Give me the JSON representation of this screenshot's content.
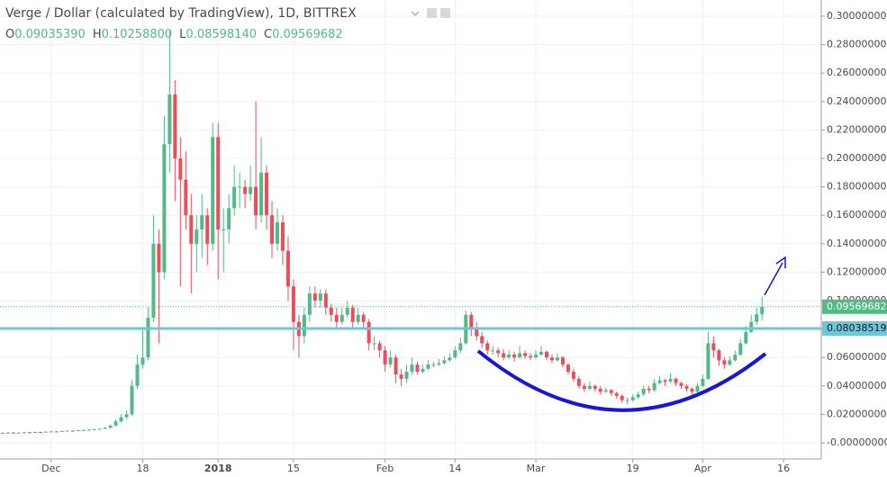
{
  "chart_data": {
    "type": "candlestick",
    "title": "Verge / Dollar (calculated by TradingView), 1D, BITTREX",
    "ohlc_legend": [
      {
        "label": "O",
        "value": "0.09035390"
      },
      {
        "label": "H",
        "value": "0.10258800"
      },
      {
        "label": "L",
        "value": "0.08598140"
      },
      {
        "label": "C",
        "value": "0.09569682"
      }
    ],
    "up_color": "#53b987",
    "down_color": "#eb4d5c",
    "grid": true,
    "xlim": [
      -0.5,
      152
    ],
    "ylim": [
      -0.0114,
      0.3114
    ],
    "xticks": [
      {
        "value": 9,
        "label": "Dec"
      },
      {
        "value": 26,
        "label": "18"
      },
      {
        "value": 40,
        "label": "2018"
      },
      {
        "value": 54,
        "label": "15"
      },
      {
        "value": 71,
        "label": "Feb"
      },
      {
        "value": 84,
        "label": "14"
      },
      {
        "value": 99,
        "label": "Mar"
      },
      {
        "value": 117,
        "label": "19"
      },
      {
        "value": 130,
        "label": "Apr"
      },
      {
        "value": 145,
        "label": "16"
      }
    ],
    "yticks": [
      {
        "value": 0,
        "label": "-0.00000000"
      },
      {
        "value": 0.02,
        "label": "0.02000000"
      },
      {
        "value": 0.04,
        "label": "0.04000000"
      },
      {
        "value": 0.06,
        "label": "0.06000000"
      },
      {
        "value": 0.08,
        "label": "0.08000000"
      },
      {
        "value": 0.1,
        "label": "0.10000000"
      },
      {
        "value": 0.12,
        "label": "0.12000000"
      },
      {
        "value": 0.14,
        "label": "0.14000000"
      },
      {
        "value": 0.16,
        "label": "0.16000000"
      },
      {
        "value": 0.18,
        "label": "0.18000000"
      },
      {
        "value": 0.2,
        "label": "0.20000000"
      },
      {
        "value": 0.22,
        "label": "0.22000000"
      },
      {
        "value": 0.24,
        "label": "0.24000000"
      },
      {
        "value": 0.26,
        "label": "0.26000000"
      },
      {
        "value": 0.28,
        "label": "0.28000000"
      },
      {
        "value": 0.3,
        "label": "0.30000000"
      }
    ],
    "horizontal_line": {
      "value": 0.08038519,
      "label": "0.08038519",
      "color": "#6fc6d8"
    },
    "last_price": {
      "value": 0.09569682,
      "label": "0.09569682"
    },
    "candles": [
      [
        0.0068,
        0.0073,
        0.0066,
        0.007
      ],
      [
        0.007,
        0.0075,
        0.0068,
        0.0072
      ],
      [
        0.0072,
        0.0074,
        0.0066,
        0.0068
      ],
      [
        0.0068,
        0.0073,
        0.0066,
        0.0071
      ],
      [
        0.0071,
        0.0077,
        0.0069,
        0.0074
      ],
      [
        0.0074,
        0.0076,
        0.007,
        0.0072
      ],
      [
        0.0072,
        0.0079,
        0.0071,
        0.0076
      ],
      [
        0.0076,
        0.0078,
        0.0073,
        0.0075
      ],
      [
        0.0075,
        0.0081,
        0.0074,
        0.0078
      ],
      [
        0.0078,
        0.0083,
        0.0076,
        0.008
      ],
      [
        0.008,
        0.0082,
        0.0077,
        0.0079
      ],
      [
        0.0079,
        0.0086,
        0.0078,
        0.0083
      ],
      [
        0.0083,
        0.0088,
        0.0081,
        0.0085
      ],
      [
        0.0085,
        0.0087,
        0.0082,
        0.0084
      ],
      [
        0.0084,
        0.0091,
        0.0083,
        0.0088
      ],
      [
        0.0088,
        0.0094,
        0.0086,
        0.009
      ],
      [
        0.009,
        0.0096,
        0.0088,
        0.0092
      ],
      [
        0.0092,
        0.0099,
        0.009,
        0.0095
      ],
      [
        0.0095,
        0.0102,
        0.0093,
        0.0098
      ],
      [
        0.0098,
        0.0112,
        0.0096,
        0.0105
      ],
      [
        0.0105,
        0.013,
        0.0102,
        0.012
      ],
      [
        0.012,
        0.0165,
        0.0115,
        0.015
      ],
      [
        0.015,
        0.02,
        0.0145,
        0.018
      ],
      [
        0.018,
        0.023,
        0.017,
        0.02
      ],
      [
        0.02,
        0.044,
        0.019,
        0.04
      ],
      [
        0.04,
        0.062,
        0.038,
        0.055
      ],
      [
        0.055,
        0.08,
        0.052,
        0.06
      ],
      [
        0.06,
        0.095,
        0.058,
        0.088
      ],
      [
        0.088,
        0.16,
        0.085,
        0.14
      ],
      [
        0.14,
        0.15,
        0.07,
        0.12
      ],
      [
        0.12,
        0.23,
        0.115,
        0.21
      ],
      [
        0.21,
        0.29,
        0.19,
        0.245
      ],
      [
        0.245,
        0.255,
        0.17,
        0.2
      ],
      [
        0.2,
        0.215,
        0.11,
        0.185
      ],
      [
        0.185,
        0.205,
        0.15,
        0.16
      ],
      [
        0.16,
        0.175,
        0.105,
        0.14
      ],
      [
        0.14,
        0.16,
        0.12,
        0.15
      ],
      [
        0.15,
        0.175,
        0.13,
        0.16
      ],
      [
        0.16,
        0.165,
        0.125,
        0.14
      ],
      [
        0.14,
        0.225,
        0.135,
        0.215
      ],
      [
        0.215,
        0.225,
        0.115,
        0.15
      ],
      [
        0.15,
        0.165,
        0.12,
        0.15
      ],
      [
        0.15,
        0.175,
        0.14,
        0.165
      ],
      [
        0.165,
        0.195,
        0.16,
        0.18
      ],
      [
        0.18,
        0.19,
        0.165,
        0.18
      ],
      [
        0.18,
        0.185,
        0.165,
        0.175
      ],
      [
        0.175,
        0.195,
        0.17,
        0.18
      ],
      [
        0.18,
        0.24,
        0.15,
        0.16
      ],
      [
        0.16,
        0.215,
        0.155,
        0.19
      ],
      [
        0.19,
        0.195,
        0.15,
        0.16
      ],
      [
        0.16,
        0.17,
        0.13,
        0.14
      ],
      [
        0.14,
        0.165,
        0.135,
        0.155
      ],
      [
        0.155,
        0.16,
        0.125,
        0.135
      ],
      [
        0.135,
        0.145,
        0.1,
        0.11
      ],
      [
        0.11,
        0.115,
        0.065,
        0.085
      ],
      [
        0.085,
        0.09,
        0.06,
        0.075
      ],
      [
        0.075,
        0.095,
        0.07,
        0.09
      ],
      [
        0.09,
        0.11,
        0.085,
        0.105
      ],
      [
        0.105,
        0.11,
        0.095,
        0.1
      ],
      [
        0.1,
        0.108,
        0.095,
        0.105
      ],
      [
        0.105,
        0.108,
        0.09,
        0.095
      ],
      [
        0.095,
        0.098,
        0.085,
        0.09
      ],
      [
        0.09,
        0.095,
        0.08,
        0.085
      ],
      [
        0.085,
        0.095,
        0.083,
        0.09
      ],
      [
        0.09,
        0.1,
        0.088,
        0.095
      ],
      [
        0.095,
        0.097,
        0.08,
        0.085
      ],
      [
        0.085,
        0.095,
        0.083,
        0.09
      ],
      [
        0.09,
        0.092,
        0.08,
        0.085
      ],
      [
        0.085,
        0.087,
        0.065,
        0.07
      ],
      [
        0.07,
        0.075,
        0.065,
        0.07
      ],
      [
        0.07,
        0.072,
        0.06,
        0.065
      ],
      [
        0.065,
        0.068,
        0.05,
        0.055
      ],
      [
        0.055,
        0.065,
        0.053,
        0.06
      ],
      [
        0.06,
        0.062,
        0.042,
        0.048
      ],
      [
        0.048,
        0.052,
        0.04,
        0.045
      ],
      [
        0.045,
        0.055,
        0.042,
        0.05
      ],
      [
        0.05,
        0.06,
        0.048,
        0.055
      ],
      [
        0.055,
        0.057,
        0.048,
        0.05
      ],
      [
        0.05,
        0.055,
        0.049,
        0.052
      ],
      [
        0.052,
        0.058,
        0.051,
        0.055
      ],
      [
        0.055,
        0.057,
        0.053,
        0.055
      ],
      [
        0.055,
        0.059,
        0.054,
        0.056
      ],
      [
        0.056,
        0.061,
        0.055,
        0.058
      ],
      [
        0.058,
        0.063,
        0.057,
        0.06
      ],
      [
        0.06,
        0.068,
        0.059,
        0.065
      ],
      [
        0.065,
        0.074,
        0.063,
        0.07
      ],
      [
        0.07,
        0.093,
        0.069,
        0.09
      ],
      [
        0.09,
        0.092,
        0.075,
        0.08
      ],
      [
        0.08,
        0.085,
        0.072,
        0.075
      ],
      [
        0.075,
        0.078,
        0.067,
        0.07
      ],
      [
        0.07,
        0.072,
        0.062,
        0.065
      ],
      [
        0.065,
        0.068,
        0.062,
        0.065
      ],
      [
        0.065,
        0.067,
        0.06,
        0.063
      ],
      [
        0.063,
        0.066,
        0.058,
        0.06
      ],
      [
        0.06,
        0.065,
        0.059,
        0.062
      ],
      [
        0.062,
        0.064,
        0.057,
        0.06
      ],
      [
        0.06,
        0.068,
        0.059,
        0.063
      ],
      [
        0.063,
        0.065,
        0.059,
        0.061
      ],
      [
        0.061,
        0.063,
        0.058,
        0.06
      ],
      [
        0.06,
        0.065,
        0.059,
        0.062
      ],
      [
        0.062,
        0.068,
        0.061,
        0.064
      ],
      [
        0.064,
        0.065,
        0.058,
        0.06
      ],
      [
        0.06,
        0.062,
        0.056,
        0.058
      ],
      [
        0.058,
        0.063,
        0.057,
        0.06
      ],
      [
        0.06,
        0.061,
        0.053,
        0.055
      ],
      [
        0.055,
        0.056,
        0.048,
        0.05
      ],
      [
        0.05,
        0.052,
        0.043,
        0.045
      ],
      [
        0.045,
        0.047,
        0.038,
        0.04
      ],
      [
        0.04,
        0.042,
        0.036,
        0.038
      ],
      [
        0.038,
        0.043,
        0.037,
        0.04
      ],
      [
        0.04,
        0.041,
        0.036,
        0.038
      ],
      [
        0.038,
        0.04,
        0.034,
        0.036
      ],
      [
        0.036,
        0.039,
        0.035,
        0.037
      ],
      [
        0.037,
        0.038,
        0.033,
        0.035
      ],
      [
        0.035,
        0.036,
        0.031,
        0.033
      ],
      [
        0.033,
        0.034,
        0.028,
        0.03
      ],
      [
        0.03,
        0.032,
        0.027,
        0.03
      ],
      [
        0.03,
        0.034,
        0.029,
        0.032
      ],
      [
        0.032,
        0.036,
        0.031,
        0.034
      ],
      [
        0.034,
        0.04,
        0.033,
        0.038
      ],
      [
        0.038,
        0.04,
        0.035,
        0.037
      ],
      [
        0.037,
        0.045,
        0.036,
        0.042
      ],
      [
        0.042,
        0.047,
        0.041,
        0.044
      ],
      [
        0.044,
        0.045,
        0.04,
        0.043
      ],
      [
        0.043,
        0.049,
        0.042,
        0.045
      ],
      [
        0.045,
        0.046,
        0.04,
        0.042
      ],
      [
        0.042,
        0.043,
        0.038,
        0.04
      ],
      [
        0.04,
        0.041,
        0.036,
        0.038
      ],
      [
        0.038,
        0.039,
        0.034,
        0.036
      ],
      [
        0.036,
        0.042,
        0.035,
        0.04
      ],
      [
        0.04,
        0.048,
        0.039,
        0.045
      ],
      [
        0.045,
        0.078,
        0.044,
        0.07
      ],
      [
        0.07,
        0.075,
        0.06,
        0.065
      ],
      [
        0.065,
        0.066,
        0.054,
        0.058
      ],
      [
        0.058,
        0.06,
        0.052,
        0.055
      ],
      [
        0.055,
        0.061,
        0.054,
        0.058
      ],
      [
        0.058,
        0.065,
        0.057,
        0.062
      ],
      [
        0.062,
        0.073,
        0.061,
        0.07
      ],
      [
        0.07,
        0.082,
        0.069,
        0.078
      ],
      [
        0.078,
        0.09,
        0.077,
        0.085
      ],
      [
        0.085,
        0.095,
        0.083,
        0.0904
      ],
      [
        0.0903539,
        0.102588,
        0.0859814,
        0.09569682
      ]
    ]
  }
}
